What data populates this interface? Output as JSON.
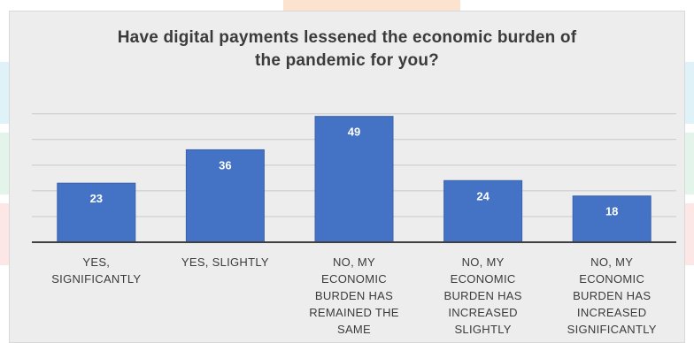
{
  "chart_data": {
    "type": "bar",
    "title": "Have digital payments lessened the economic burden of the pandemic for you?",
    "title_lines": [
      "Have digital payments lessened the economic burden of",
      "the pandemic for you?"
    ],
    "categories": [
      "YES, SIGNIFICANTLY",
      "YES, SLIGHTLY",
      "NO, MY ECONOMIC BURDEN HAS REMAINED THE SAME",
      "NO, MY ECONOMIC BURDEN HAS INCREASED SLIGHTLY",
      "NO, MY ECONOMIC BURDEN HAS INCREASED SIGNIFICANTLY"
    ],
    "category_lines": [
      [
        "YES,",
        "SIGNIFICANTLY"
      ],
      [
        "YES, SLIGHTLY"
      ],
      [
        "NO, MY",
        "ECONOMIC",
        "BURDEN HAS",
        "REMAINED THE",
        "SAME"
      ],
      [
        "NO, MY",
        "ECONOMIC",
        "BURDEN HAS",
        "INCREASED",
        "SLIGHTLY"
      ],
      [
        "NO, MY",
        "ECONOMIC",
        "BURDEN HAS",
        "INCREASED",
        "SIGNIFICANTLY"
      ]
    ],
    "values": [
      23,
      36,
      49,
      24,
      18
    ],
    "xlabel": "",
    "ylabel": "",
    "ylim": [
      0,
      50
    ],
    "grid": true,
    "legend": "none",
    "show_data_labels": true
  },
  "colors": {
    "bar": "#4472c4",
    "bar_edge": "#3a62ad",
    "data_label": "#ffffff",
    "gridline": "#c9c9c9",
    "axis": "#404040",
    "panel": "#ededed"
  }
}
